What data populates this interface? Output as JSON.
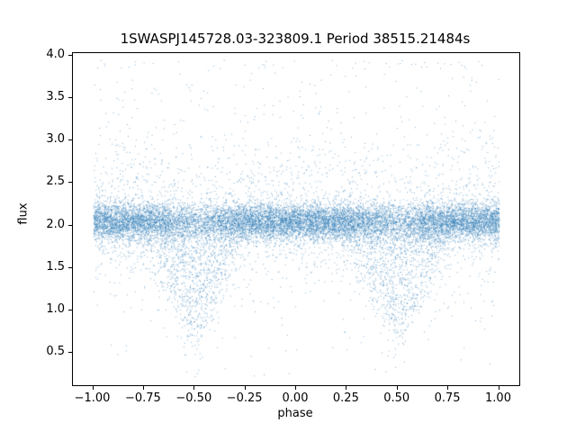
{
  "chart_data": {
    "type": "scatter",
    "title": "1SWASPJ145728.03-323809.1 Period 38515.21484s",
    "xlabel": "phase",
    "ylabel": "flux",
    "xlim": [
      -1.1,
      1.1
    ],
    "ylim": [
      0.12,
      4.03
    ],
    "xticks": [
      -1.0,
      -0.75,
      -0.5,
      -0.25,
      0.0,
      0.25,
      0.5,
      0.75,
      1.0
    ],
    "xtick_labels": [
      "−1.00",
      "−0.75",
      "−0.50",
      "−0.25",
      "0.00",
      "0.25",
      "0.50",
      "0.75",
      "1.00"
    ],
    "yticks": [
      0.5,
      1.0,
      1.5,
      2.0,
      2.5,
      3.0,
      3.5,
      4.0
    ],
    "ytick_labels": [
      "0.5",
      "1.0",
      "1.5",
      "2.0",
      "2.5",
      "3.0",
      "3.5",
      "4.0"
    ],
    "grid": false,
    "legend": null,
    "marker_color": "#2f7cb5",
    "marker_alpha": 0.6,
    "marker_size_px": 1,
    "n_points": 17000,
    "seed": 42,
    "distribution": {
      "phase_range": [
        -1.0,
        1.0
      ],
      "baseline_mean": 2.05,
      "baseline_sigma": 0.11,
      "up_tail_prob": 0.1,
      "up_tail_scale": 0.5,
      "down_tail_prob": 0.09,
      "down_tail_scale": 0.32,
      "eclipse_centers": [
        -0.5,
        0.5
      ],
      "eclipse_half_width": 0.28,
      "eclipse_max_prob": 0.45,
      "eclipse_min_depth": 0.12,
      "eclipse_max_depth": 1.45,
      "flux_clip": [
        0.22,
        3.95
      ]
    }
  }
}
